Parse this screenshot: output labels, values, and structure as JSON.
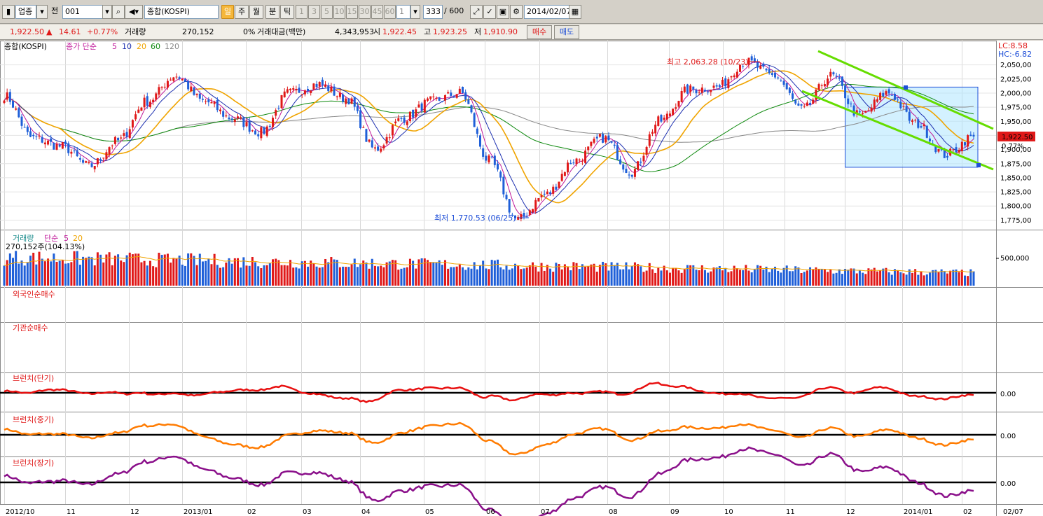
{
  "toolbar": {
    "market_label": "업종",
    "market_mode": "전",
    "code": "001",
    "name": "종합(KOSPI)",
    "period_buttons": [
      "일",
      "주",
      "월"
    ],
    "interval_buttons": [
      "분",
      "틱"
    ],
    "minute_buttons": [
      "1",
      "3",
      "5",
      "10",
      "15",
      "30",
      "45",
      "60"
    ],
    "minute_custom": "1",
    "count": "333",
    "count_max": "/ 600",
    "date": "2014/02/07"
  },
  "quote": {
    "price": "1,922.50",
    "change_arrow": "▲",
    "change": "14.61",
    "change_pct": "+0.77%",
    "volume_label": "거래량",
    "volume": "270,152",
    "volume_pct": "0%",
    "value_label": "거래대금(백만)",
    "value": "4,343,953",
    "open_label": "시",
    "open": "1,922.45",
    "high_label": "고",
    "high": "1,923.25",
    "low_label": "저",
    "low": "1,910.90",
    "buy_label": "매수",
    "sell_label": "매도"
  },
  "colors": {
    "up": "#e01818",
    "down": "#1f5fd8",
    "ma5": "#c0189a",
    "ma10": "#1c2fb0",
    "ma20": "#f0a400",
    "ma60": "#0f8a0f",
    "ma120": "#888888",
    "trend_line": "#66dd00",
    "box_fill": "#aee6ff",
    "box_border": "#1f4fd8",
    "branch_short": "#e81010",
    "branch_mid": "#ff7b00",
    "branch_long": "#8a0f8a"
  },
  "chart_data": {
    "type": "candlestick",
    "panels": {
      "price": {
        "title_parts": [
          "종합(KOSPI)",
          "종가 단순",
          "5",
          "10",
          "20",
          "60",
          "120"
        ],
        "y_ticks": [
          "2,050,00",
          "2,025,00",
          "2,000,00",
          "1,975,00",
          "1,950,00",
          "1,925,00",
          "1,900,00",
          "1,875,00",
          "1,850,00",
          "1,825,00",
          "1,800,00",
          "1,775,00"
        ],
        "ylim": [
          1760,
          2070
        ],
        "lc_label": "LC:8.58",
        "hc_label": "HC:-6.82",
        "last_value": "1,922.50",
        "last_pct": "0.77%",
        "high_annotation": "최고 2,063.28 (10/23)",
        "low_annotation": "최저 1,770.53 (06/25)",
        "series_anchor_closes": [
          [
            "2012/10",
            1995
          ],
          [
            "2012/10",
            1920
          ],
          [
            "2012/11",
            1905
          ],
          [
            "2012/11",
            1870
          ],
          [
            "2012/12",
            1915
          ],
          [
            "2012/12",
            1985
          ],
          [
            "2013/01",
            2030
          ],
          [
            "2013/01",
            1985
          ],
          [
            "2013/02",
            1955
          ],
          [
            "2013/02",
            1930
          ],
          [
            "2013/03",
            2000
          ],
          [
            "2013/03",
            2015
          ],
          [
            "2013/04",
            1990
          ],
          [
            "2013/04",
            1900
          ],
          [
            "2013/05",
            1955
          ],
          [
            "2013/05",
            1985
          ],
          [
            "2013/06",
            2000
          ],
          [
            "2013/06",
            1880
          ],
          [
            "2013/06",
            1775
          ],
          [
            "2013/07",
            1820
          ],
          [
            "2013/07",
            1880
          ],
          [
            "2013/08",
            1920
          ],
          [
            "2013/08",
            1860
          ],
          [
            "2013/09",
            1950
          ],
          [
            "2013/09",
            2005
          ],
          [
            "2013/10",
            2010
          ],
          [
            "2013/10",
            2055
          ],
          [
            "2013/11",
            2030
          ],
          [
            "2013/11",
            1970
          ],
          [
            "2013/12",
            2030
          ],
          [
            "2013/12",
            1960
          ],
          [
            "2014/01",
            2000
          ],
          [
            "2014/01",
            1945
          ],
          [
            "2014/02",
            1890
          ],
          [
            "2014/02",
            1922.5
          ]
        ]
      },
      "volume": {
        "title_parts": [
          "거래량",
          "단순",
          "5",
          "20"
        ],
        "legend_value": "270,152주(104.13%)",
        "y_ticks": [
          "500,000"
        ]
      },
      "foreign": {
        "title": "외국인순매수"
      },
      "institution": {
        "title": "기관순매수"
      },
      "branch_short": {
        "title": "브런치(단기)",
        "zero_label": "0.00"
      },
      "branch_mid": {
        "title": "브런치(중기)",
        "zero_label": "0.00"
      },
      "branch_long": {
        "title": "브런치(장기)",
        "zero_label": "0.00"
      }
    },
    "x_ticks": [
      "2012/10",
      "11",
      "12",
      "2013/01",
      "02",
      "03",
      "04",
      "05",
      "06",
      "07",
      "08",
      "09",
      "10",
      "11",
      "12",
      "2014/01",
      "02"
    ],
    "x_end_label": "02/07"
  }
}
